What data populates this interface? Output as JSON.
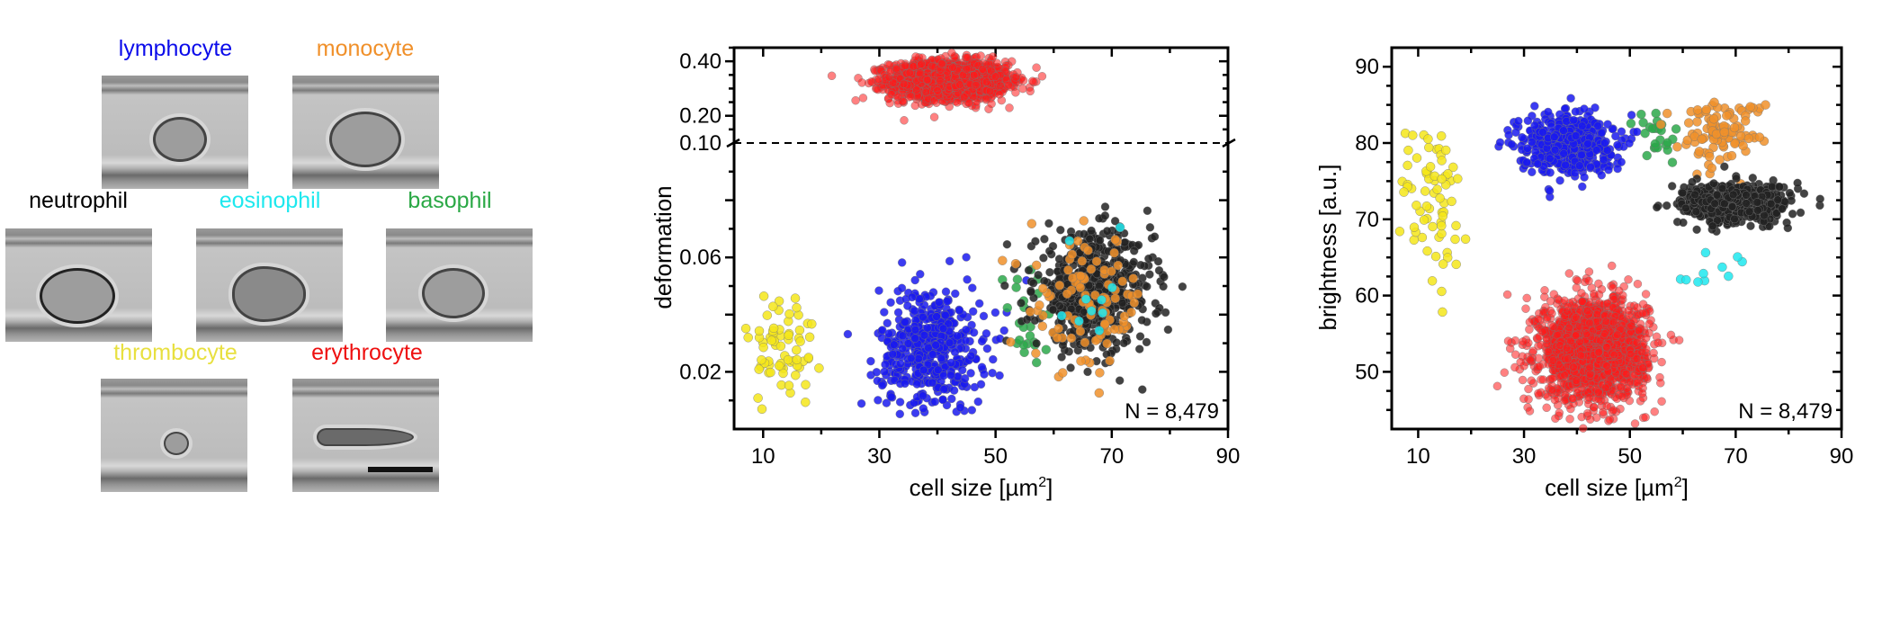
{
  "images": {
    "panels": [
      {
        "label": "lymphocyte",
        "color": "#0b0bea"
      },
      {
        "label": "monocyte",
        "color": "#f0902a"
      },
      {
        "label": "neutrophil",
        "color": "#000000"
      },
      {
        "label": "eosinophil",
        "color": "#1ee8ee"
      },
      {
        "label": "basophil",
        "color": "#2aa845"
      },
      {
        "label": "thrombocyte",
        "color": "#e8e040"
      },
      {
        "label": "erythrocyte",
        "color": "#ee1010"
      }
    ]
  },
  "chart_data": [
    {
      "type": "scatter",
      "xlabel": "cell size [µm",
      "xlabel_sup": "2",
      "xlabel_end": "]",
      "ylabel": "deformation",
      "xlim": [
        5,
        90
      ],
      "xticks": [
        "10",
        "30",
        "50",
        "70",
        "90"
      ],
      "y_axis_break": 0.1,
      "ylim_lower": [
        0,
        0.1
      ],
      "ylim_upper": [
        0.1,
        0.45
      ],
      "yticks_lower": [
        "0.02",
        "0.06"
      ],
      "yticks_upper": [
        "0.10",
        "0.20",
        "0.40"
      ],
      "annotation": "N = 8,479",
      "grid": false,
      "clusters": [
        {
          "cell": "erythrocyte",
          "color": "#ff1a1a",
          "n": 1800,
          "x_mean": 42,
          "x_sd": 5,
          "y_mean": 0.33,
          "y_sd": 0.035
        },
        {
          "cell": "thrombocyte",
          "color": "#f5e61a",
          "n": 70,
          "x_mean": 13,
          "x_sd": 3,
          "y_mean": 0.028,
          "y_sd": 0.011
        },
        {
          "cell": "lymphocyte",
          "color": "#1a1aee",
          "n": 480,
          "x_mean": 39,
          "x_sd": 4.5,
          "y_mean": 0.028,
          "y_sd": 0.011
        },
        {
          "cell": "basophil",
          "color": "#2ca84a",
          "n": 25,
          "x_mean": 55,
          "x_sd": 2.5,
          "y_mean": 0.034,
          "y_sd": 0.012
        },
        {
          "cell": "neutrophil",
          "color": "#222222",
          "n": 650,
          "x_mean": 67,
          "x_sd": 5,
          "y_mean": 0.048,
          "y_sd": 0.01
        },
        {
          "cell": "monocyte",
          "color": "#f0902a",
          "n": 100,
          "x_mean": 66,
          "x_sd": 5,
          "y_mean": 0.044,
          "y_sd": 0.012
        },
        {
          "cell": "eosinophil",
          "color": "#1ee8ee",
          "n": 10,
          "x_mean": 67,
          "x_sd": 5,
          "y_mean": 0.045,
          "y_sd": 0.01
        }
      ]
    },
    {
      "type": "scatter",
      "xlabel": "cell size [µm",
      "xlabel_sup": "2",
      "xlabel_end": "]",
      "ylabel": "brightness [a.u.]",
      "xlim": [
        5,
        90
      ],
      "ylim": [
        42.5,
        92.5
      ],
      "xticks": [
        "10",
        "30",
        "50",
        "70",
        "90"
      ],
      "yticks": [
        "50",
        "60",
        "70",
        "80",
        "90"
      ],
      "annotation": "N = 8,479",
      "grid": false,
      "clusters": [
        {
          "cell": "erythrocyte",
          "color": "#ff1a1a",
          "n": 1800,
          "x_mean": 43,
          "x_sd": 5,
          "y_mean": 53,
          "y_sd": 3.3
        },
        {
          "cell": "thrombocyte",
          "color": "#f5e61a",
          "n": 70,
          "x_mean": 13,
          "x_sd": 3,
          "y_mean": 72,
          "y_sd": 6
        },
        {
          "cell": "lymphocyte",
          "color": "#1a1aee",
          "n": 480,
          "x_mean": 38,
          "x_sd": 4.5,
          "y_mean": 80,
          "y_sd": 2
        },
        {
          "cell": "basophil",
          "color": "#2ca84a",
          "n": 25,
          "x_mean": 55,
          "x_sd": 2,
          "y_mean": 81,
          "y_sd": 2
        },
        {
          "cell": "monocyte",
          "color": "#f0902a",
          "n": 100,
          "x_mean": 67,
          "x_sd": 4,
          "y_mean": 81.5,
          "y_sd": 2
        },
        {
          "cell": "neutrophil",
          "color": "#222222",
          "n": 650,
          "x_mean": 70,
          "x_sd": 5,
          "y_mean": 72,
          "y_sd": 1.3
        },
        {
          "cell": "eosinophil",
          "color": "#1ee8ee",
          "n": 10,
          "x_mean": 68,
          "x_sd": 5,
          "y_mean": 62,
          "y_sd": 2.2
        }
      ]
    }
  ]
}
